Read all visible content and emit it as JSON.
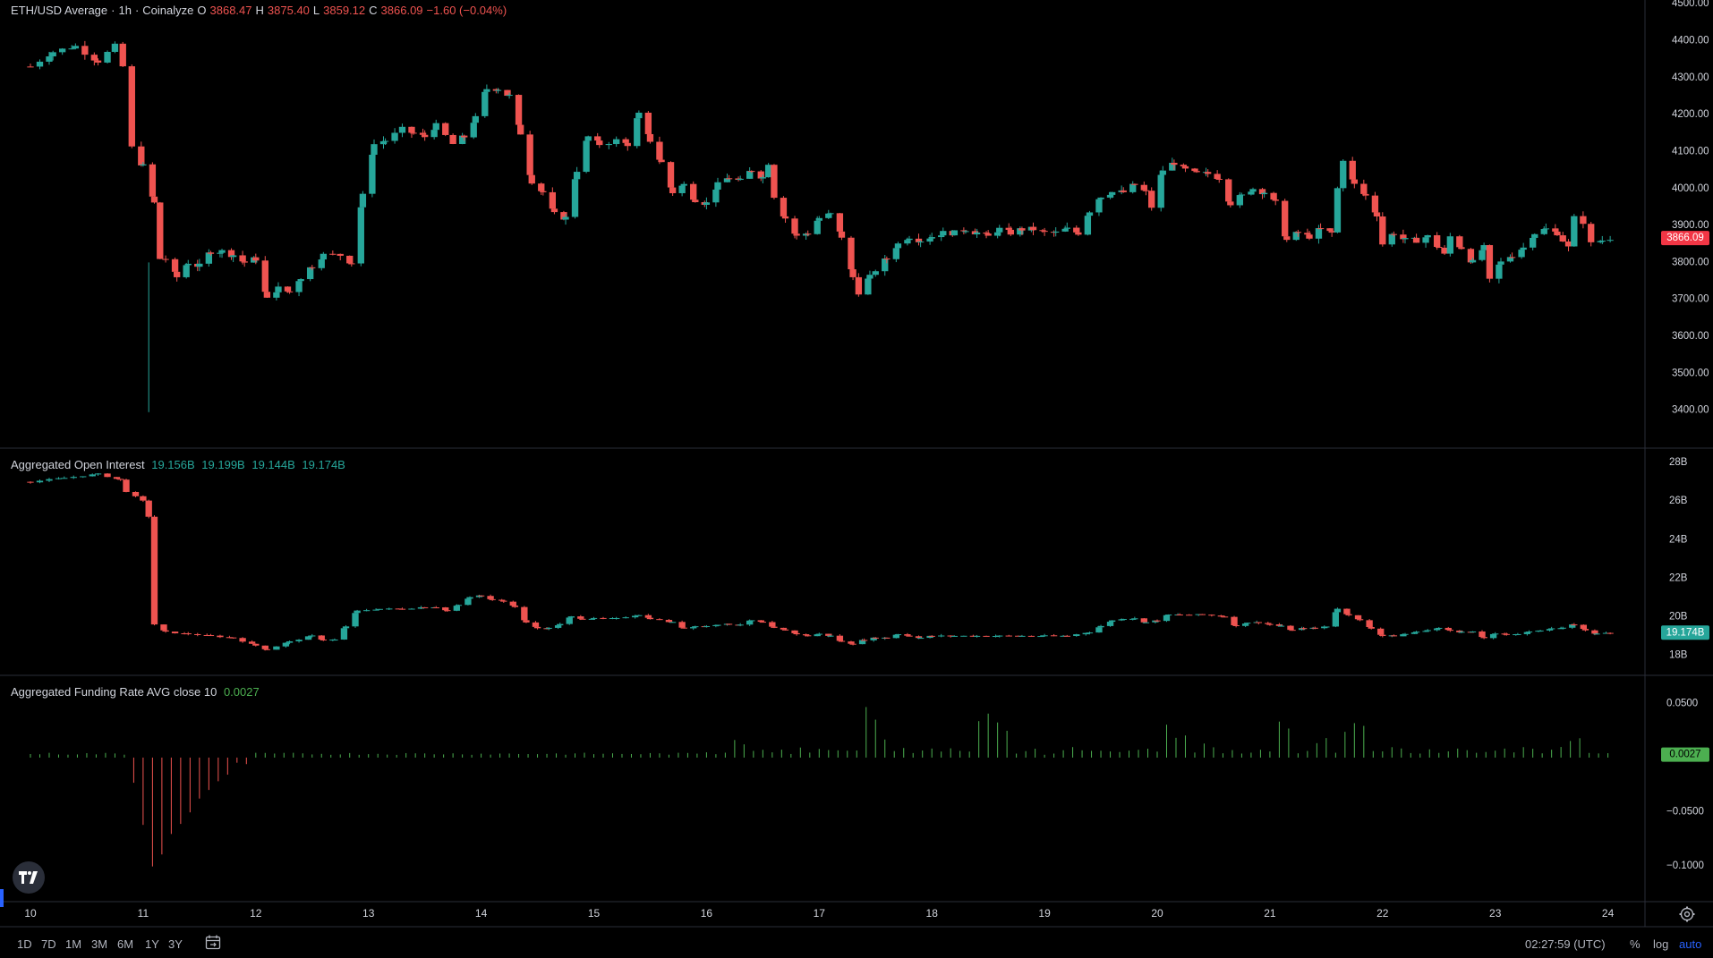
{
  "main_legend": {
    "symbol": "ETH/USD Average",
    "sep1": "·",
    "interval": "1h",
    "sep2": "·",
    "source": "Coinalyze",
    "o_label": "O",
    "o": "3868.47",
    "h_label": "H",
    "h": "3875.40",
    "l_label": "L",
    "l": "3859.12",
    "c_label": "C",
    "c": "3866.09",
    "change": "−1.60 (−0.04%)"
  },
  "oi_legend": {
    "name": "Aggregated Open Interest",
    "v1": "19.156B",
    "v2": "19.199B",
    "v3": "19.144B",
    "v4": "19.174B"
  },
  "fr_legend": {
    "name": "Aggregated Funding Rate AVG close 10",
    "value": "0.0027"
  },
  "bottom_bar": {
    "ranges": [
      "1D",
      "7D",
      "1M",
      "3M",
      "6M",
      "1Y",
      "3Y"
    ],
    "time": "02:27:59 (UTC)",
    "percent": "%",
    "log": "log",
    "auto": "auto"
  },
  "icons": {
    "logo": "tradingview-logo-icon",
    "calendar": "calendar-range-icon",
    "settings": "gear-icon"
  },
  "colors": {
    "up": "#26a69a",
    "down": "#ef5350",
    "funding_pos": "#4caf50",
    "funding_neg": "#ef5350",
    "background": "#000000",
    "axis_text": "#d1d4dc",
    "price_tag": "#f23645",
    "oi_tag": "#26a69a",
    "fr_tag": "#4caf50"
  },
  "chart_data": [
    {
      "type": "candlestick",
      "title": "ETH/USD Average · 1h · Coinalyze",
      "y_ticks": [
        "4500.00",
        "4400.00",
        "4300.00",
        "4200.00",
        "4100.00",
        "4000.00",
        "3900.00",
        "3800.00",
        "3700.00",
        "3600.00",
        "3500.00",
        "3400.00"
      ],
      "ylim": [
        3300,
        4510
      ],
      "last_value_label": "3866.09",
      "x_ticks": [
        "10",
        "11",
        "12",
        "13",
        "14",
        "15",
        "16",
        "17",
        "18",
        "19",
        "20",
        "21",
        "22",
        "23",
        "24"
      ],
      "x_day_start": 10,
      "hours_per_point": 2,
      "close_path": [
        [
          10.0,
          4330
        ],
        [
          10.2,
          4370
        ],
        [
          10.4,
          4385
        ],
        [
          10.6,
          4345
        ],
        [
          10.75,
          4385
        ],
        [
          10.82,
          4330
        ],
        [
          10.9,
          4110
        ],
        [
          11.0,
          4060
        ],
        [
          11.1,
          3960
        ],
        [
          11.15,
          3810
        ],
        [
          11.2,
          3810
        ],
        [
          11.3,
          3760
        ],
        [
          11.4,
          3800
        ],
        [
          11.5,
          3790
        ],
        [
          11.6,
          3830
        ],
        [
          11.7,
          3830
        ],
        [
          11.8,
          3820
        ],
        [
          11.9,
          3800
        ],
        [
          12.0,
          3810
        ],
        [
          12.1,
          3700
        ],
        [
          12.2,
          3730
        ],
        [
          12.3,
          3720
        ],
        [
          12.4,
          3760
        ],
        [
          12.5,
          3790
        ],
        [
          12.6,
          3820
        ],
        [
          12.75,
          3820
        ],
        [
          12.85,
          3800
        ],
        [
          12.95,
          3980
        ],
        [
          13.05,
          4120
        ],
        [
          13.15,
          4130
        ],
        [
          13.3,
          4160
        ],
        [
          13.4,
          4150
        ],
        [
          13.5,
          4140
        ],
        [
          13.6,
          4170
        ],
        [
          13.75,
          4120
        ],
        [
          13.85,
          4140
        ],
        [
          13.95,
          4190
        ],
        [
          14.05,
          4270
        ],
        [
          14.15,
          4270
        ],
        [
          14.25,
          4250
        ],
        [
          14.35,
          4150
        ],
        [
          14.45,
          4020
        ],
        [
          14.55,
          3990
        ],
        [
          14.65,
          3930
        ],
        [
          14.75,
          3920
        ],
        [
          14.85,
          4050
        ],
        [
          14.95,
          4140
        ],
        [
          15.05,
          4120
        ],
        [
          15.2,
          4130
        ],
        [
          15.3,
          4120
        ],
        [
          15.4,
          4200
        ],
        [
          15.5,
          4130
        ],
        [
          15.6,
          4070
        ],
        [
          15.7,
          3990
        ],
        [
          15.8,
          4010
        ],
        [
          15.9,
          3970
        ],
        [
          16.0,
          3960
        ],
        [
          16.1,
          4010
        ],
        [
          16.2,
          4030
        ],
        [
          16.3,
          4020
        ],
        [
          16.4,
          4050
        ],
        [
          16.5,
          4030
        ],
        [
          16.55,
          4070
        ],
        [
          16.6,
          3980
        ],
        [
          16.7,
          3920
        ],
        [
          16.8,
          3870
        ],
        [
          16.9,
          3880
        ],
        [
          17.0,
          3920
        ],
        [
          17.1,
          3930
        ],
        [
          17.2,
          3870
        ],
        [
          17.3,
          3760
        ],
        [
          17.35,
          3720
        ],
        [
          17.45,
          3760
        ],
        [
          17.5,
          3780
        ],
        [
          17.6,
          3810
        ],
        [
          17.7,
          3850
        ],
        [
          17.8,
          3870
        ],
        [
          17.9,
          3860
        ],
        [
          18.0,
          3870
        ],
        [
          18.1,
          3880
        ],
        [
          18.2,
          3880
        ],
        [
          18.3,
          3890
        ],
        [
          18.4,
          3880
        ],
        [
          18.5,
          3870
        ],
        [
          18.6,
          3890
        ],
        [
          18.7,
          3880
        ],
        [
          18.8,
          3890
        ],
        [
          18.9,
          3890
        ],
        [
          19.0,
          3880
        ],
        [
          19.1,
          3880
        ],
        [
          19.2,
          3890
        ],
        [
          19.3,
          3880
        ],
        [
          19.4,
          3940
        ],
        [
          19.5,
          3980
        ],
        [
          19.6,
          3990
        ],
        [
          19.7,
          3990
        ],
        [
          19.8,
          4010
        ],
        [
          19.9,
          3990
        ],
        [
          19.95,
          3950
        ],
        [
          20.05,
          4050
        ],
        [
          20.15,
          4070
        ],
        [
          20.25,
          4050
        ],
        [
          20.35,
          4040
        ],
        [
          20.45,
          4040
        ],
        [
          20.55,
          4030
        ],
        [
          20.65,
          3960
        ],
        [
          20.75,
          3980
        ],
        [
          20.85,
          4000
        ],
        [
          20.95,
          3990
        ],
        [
          21.05,
          3960
        ],
        [
          21.15,
          3860
        ],
        [
          21.25,
          3880
        ],
        [
          21.35,
          3870
        ],
        [
          21.45,
          3890
        ],
        [
          21.55,
          3880
        ],
        [
          21.6,
          4000
        ],
        [
          21.65,
          4080
        ],
        [
          21.75,
          4010
        ],
        [
          21.85,
          3980
        ],
        [
          21.95,
          3930
        ],
        [
          22.0,
          3850
        ],
        [
          22.1,
          3880
        ],
        [
          22.2,
          3860
        ],
        [
          22.3,
          3860
        ],
        [
          22.4,
          3870
        ],
        [
          22.5,
          3840
        ],
        [
          22.55,
          3820
        ],
        [
          22.6,
          3870
        ],
        [
          22.7,
          3840
        ],
        [
          22.8,
          3800
        ],
        [
          22.9,
          3840
        ],
        [
          22.95,
          3750
        ],
        [
          23.05,
          3800
        ],
        [
          23.15,
          3820
        ],
        [
          23.25,
          3840
        ],
        [
          23.35,
          3880
        ],
        [
          23.45,
          3890
        ],
        [
          23.55,
          3880
        ],
        [
          23.6,
          3860
        ],
        [
          23.65,
          3840
        ],
        [
          23.7,
          3920
        ],
        [
          23.78,
          3910
        ],
        [
          23.85,
          3850
        ],
        [
          23.95,
          3860
        ],
        [
          24.02,
          3866
        ]
      ]
    },
    {
      "type": "candlestick",
      "title": "Aggregated Open Interest",
      "y_ticks": [
        "28B",
        "26B",
        "24B",
        "22B",
        "20B",
        "18B"
      ],
      "ylim": [
        17.0,
        28.7
      ],
      "last_value_label": "19.174B",
      "close_path": [
        [
          10.0,
          27.0
        ],
        [
          10.3,
          27.2
        ],
        [
          10.6,
          27.4
        ],
        [
          10.8,
          27.1
        ],
        [
          10.85,
          26.5
        ],
        [
          11.0,
          26.0
        ],
        [
          11.05,
          25.2
        ],
        [
          11.1,
          19.6
        ],
        [
          11.2,
          19.2
        ],
        [
          11.4,
          19.1
        ],
        [
          11.6,
          19.0
        ],
        [
          11.8,
          18.9
        ],
        [
          12.0,
          18.5
        ],
        [
          12.1,
          18.3
        ],
        [
          12.3,
          18.7
        ],
        [
          12.5,
          19.0
        ],
        [
          12.6,
          18.8
        ],
        [
          12.7,
          18.8
        ],
        [
          12.8,
          19.5
        ],
        [
          12.9,
          20.3
        ],
        [
          13.1,
          20.4
        ],
        [
          13.3,
          20.4
        ],
        [
          13.5,
          20.5
        ],
        [
          13.6,
          20.5
        ],
        [
          13.7,
          20.3
        ],
        [
          13.8,
          20.6
        ],
        [
          13.9,
          21.0
        ],
        [
          14.0,
          21.1
        ],
        [
          14.1,
          20.9
        ],
        [
          14.2,
          20.8
        ],
        [
          14.3,
          20.5
        ],
        [
          14.4,
          19.7
        ],
        [
          14.5,
          19.4
        ],
        [
          14.6,
          19.4
        ],
        [
          14.7,
          19.6
        ],
        [
          14.8,
          20.0
        ],
        [
          14.9,
          19.9
        ],
        [
          15.0,
          19.9
        ],
        [
          15.2,
          19.9
        ],
        [
          15.4,
          20.1
        ],
        [
          15.5,
          19.9
        ],
        [
          15.7,
          19.7
        ],
        [
          15.8,
          19.4
        ],
        [
          15.9,
          19.5
        ],
        [
          16.0,
          19.5
        ],
        [
          16.1,
          19.6
        ],
        [
          16.2,
          19.6
        ],
        [
          16.3,
          19.6
        ],
        [
          16.4,
          19.8
        ],
        [
          16.5,
          19.7
        ],
        [
          16.6,
          19.4
        ],
        [
          16.7,
          19.3
        ],
        [
          16.8,
          19.1
        ],
        [
          16.9,
          19.0
        ],
        [
          17.0,
          19.1
        ],
        [
          17.1,
          19.0
        ],
        [
          17.2,
          18.7
        ],
        [
          17.3,
          18.6
        ],
        [
          17.4,
          18.8
        ],
        [
          17.5,
          18.9
        ],
        [
          17.6,
          18.9
        ],
        [
          17.7,
          19.1
        ],
        [
          17.8,
          19.0
        ],
        [
          17.9,
          18.9
        ],
        [
          18.0,
          19.0
        ],
        [
          18.2,
          19.0
        ],
        [
          18.4,
          19.0
        ],
        [
          18.6,
          19.0
        ],
        [
          18.8,
          19.0
        ],
        [
          19.0,
          19.0
        ],
        [
          19.2,
          19.0
        ],
        [
          19.4,
          19.2
        ],
        [
          19.5,
          19.5
        ],
        [
          19.6,
          19.8
        ],
        [
          19.7,
          19.9
        ],
        [
          19.8,
          19.9
        ],
        [
          19.9,
          19.7
        ],
        [
          20.0,
          19.8
        ],
        [
          20.1,
          20.1
        ],
        [
          20.2,
          20.1
        ],
        [
          20.4,
          20.1
        ],
        [
          20.6,
          20.0
        ],
        [
          20.7,
          19.5
        ],
        [
          20.8,
          19.7
        ],
        [
          20.9,
          19.7
        ],
        [
          21.0,
          19.6
        ],
        [
          21.1,
          19.5
        ],
        [
          21.2,
          19.3
        ],
        [
          21.3,
          19.4
        ],
        [
          21.4,
          19.4
        ],
        [
          21.5,
          19.5
        ],
        [
          21.6,
          20.4
        ],
        [
          21.7,
          20.1
        ],
        [
          21.8,
          19.8
        ],
        [
          21.9,
          19.4
        ],
        [
          22.0,
          19.0
        ],
        [
          22.1,
          19.0
        ],
        [
          22.2,
          19.1
        ],
        [
          22.3,
          19.2
        ],
        [
          22.4,
          19.3
        ],
        [
          22.5,
          19.4
        ],
        [
          22.6,
          19.3
        ],
        [
          22.7,
          19.2
        ],
        [
          22.8,
          19.2
        ],
        [
          22.9,
          18.9
        ],
        [
          23.0,
          19.1
        ],
        [
          23.1,
          19.1
        ],
        [
          23.2,
          19.1
        ],
        [
          23.3,
          19.2
        ],
        [
          23.4,
          19.3
        ],
        [
          23.5,
          19.4
        ],
        [
          23.6,
          19.4
        ],
        [
          23.7,
          19.6
        ],
        [
          23.8,
          19.3
        ],
        [
          23.9,
          19.1
        ],
        [
          24.02,
          19.17
        ]
      ]
    },
    {
      "type": "bar",
      "title": "Aggregated Funding Rate AVG close 10",
      "y_ticks": [
        "0.0500",
        "−0.0500",
        "−0.1000"
      ],
      "ylim": [
        -0.132,
        0.075
      ],
      "last_value_label": "0.0027",
      "baseline_positive": 0.0035,
      "negative_segment": [
        [
          10.85,
          -0.003
        ],
        [
          10.9,
          -0.015
        ],
        [
          10.95,
          -0.03
        ],
        [
          11.0,
          -0.06
        ],
        [
          11.05,
          -0.085
        ],
        [
          11.1,
          -0.11
        ],
        [
          11.15,
          -0.1
        ],
        [
          11.2,
          -0.08
        ],
        [
          11.25,
          -0.07
        ],
        [
          11.3,
          -0.06
        ],
        [
          11.4,
          -0.05
        ],
        [
          11.5,
          -0.04
        ],
        [
          11.6,
          -0.03
        ],
        [
          11.7,
          -0.02
        ],
        [
          11.8,
          -0.01
        ],
        [
          11.9,
          -0.005
        ],
        [
          12.0,
          -0.002
        ]
      ],
      "spikes": [
        [
          16.3,
          0.012
        ],
        [
          16.5,
          0.006
        ],
        [
          17.4,
          0.058
        ],
        [
          17.45,
          0.042
        ],
        [
          17.5,
          0.03
        ],
        [
          17.6,
          0.012
        ],
        [
          18.45,
          0.032
        ],
        [
          18.5,
          0.036
        ],
        [
          18.6,
          0.03
        ],
        [
          18.7,
          0.022
        ],
        [
          19.2,
          0.006
        ],
        [
          20.1,
          0.025
        ],
        [
          20.2,
          0.018
        ],
        [
          20.4,
          0.012
        ],
        [
          21.1,
          0.033
        ],
        [
          21.15,
          0.022
        ],
        [
          21.4,
          0.012
        ],
        [
          21.5,
          0.014
        ],
        [
          21.7,
          0.022
        ],
        [
          21.75,
          0.03
        ],
        [
          21.85,
          0.025
        ],
        [
          23.6,
          0.008
        ],
        [
          23.7,
          0.012
        ]
      ]
    }
  ]
}
